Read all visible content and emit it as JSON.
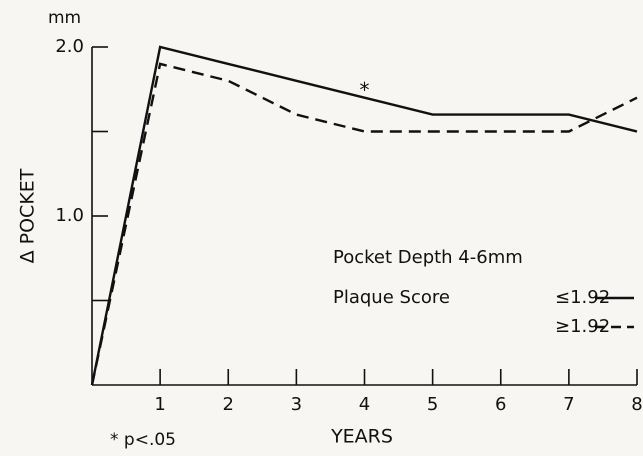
{
  "chart_data": {
    "type": "line",
    "unit_label": "mm",
    "y_label": "Δ POCKET",
    "x_label": "YEARS",
    "x": [
      0,
      1,
      2,
      3,
      4,
      5,
      6,
      7,
      8
    ],
    "xlim": [
      0,
      8
    ],
    "xticks": [
      1,
      2,
      3,
      4,
      5,
      6,
      7,
      8
    ],
    "ylim": [
      0,
      2
    ],
    "yticks": [
      {
        "value": 2,
        "label": "2.0"
      },
      {
        "value": 1,
        "label": "1.0"
      }
    ],
    "minor_yticks": [
      0.5,
      1.5
    ],
    "series": [
      {
        "name": "≤1.92",
        "color": "#111111",
        "dash": false,
        "values": [
          0,
          2.0,
          1.9,
          1.8,
          1.7,
          1.6,
          1.6,
          1.6,
          1.5
        ]
      },
      {
        "name": "≥1.92",
        "color": "#111111",
        "dash": true,
        "values": [
          0,
          1.9,
          1.8,
          1.6,
          1.5,
          1.5,
          1.5,
          1.5,
          1.7
        ]
      }
    ],
    "legend_title": [
      "Pocket Depth 4-6mm",
      "Plaque Score"
    ],
    "annotation": "*",
    "footnote": "* p<.05"
  }
}
